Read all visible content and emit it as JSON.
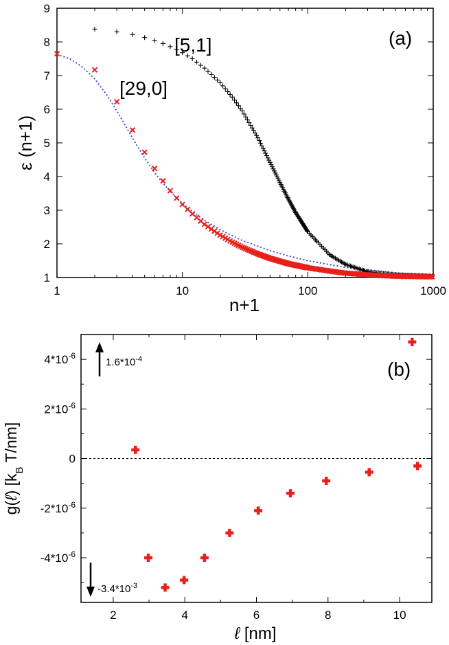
{
  "chart_data": [
    {
      "type": "scatter",
      "panel_label": "(a)",
      "xlabel": "n+1",
      "ylabel": "ε (n+1)",
      "xscale": "log",
      "xlim": [
        1,
        1000
      ],
      "ylim": [
        1,
        9
      ],
      "x_ticks": [
        1,
        10,
        100,
        1000
      ],
      "x_tick_labels": [
        "1",
        "10",
        "100",
        "1000"
      ],
      "y_ticks": [
        1,
        2,
        3,
        4,
        5,
        6,
        7,
        8,
        9
      ],
      "y_tick_labels": [
        "1",
        "2",
        "3",
        "4",
        "5",
        "6",
        "7",
        "8",
        "9"
      ],
      "series": [
        {
          "name": "[5,1]",
          "marker": "plus",
          "color": "#000000",
          "x": [
            2,
            3,
            4,
            5,
            6,
            7,
            8,
            9,
            10,
            12,
            15,
            20,
            25,
            30,
            40,
            50,
            60,
            70,
            80,
            100,
            150,
            200,
            300,
            500,
            1000
          ],
          "y": [
            8.38,
            8.3,
            8.22,
            8.13,
            8.04,
            7.95,
            7.86,
            7.77,
            7.68,
            7.5,
            7.22,
            6.79,
            6.36,
            5.95,
            5.15,
            4.42,
            3.82,
            3.33,
            2.93,
            2.36,
            1.67,
            1.39,
            1.17,
            1.08,
            1.04
          ]
        },
        {
          "name": "[29,0]",
          "marker": "cross",
          "color": "#e8201a",
          "x": [
            1,
            2,
            3,
            4,
            5,
            6,
            7,
            8,
            9,
            10,
            12,
            15,
            20,
            25,
            30,
            40,
            50,
            70,
            100,
            150,
            200,
            300,
            500,
            1000
          ],
          "y": [
            7.65,
            7.17,
            6.22,
            5.38,
            4.72,
            4.24,
            3.87,
            3.58,
            3.36,
            3.17,
            2.89,
            2.58,
            2.26,
            2.05,
            1.9,
            1.7,
            1.57,
            1.41,
            1.29,
            1.19,
            1.13,
            1.08,
            1.04,
            1.02
          ]
        },
        {
          "name": "",
          "line": "dotted",
          "color": "#3a4fd8",
          "x": [
            1,
            1.3,
            1.6,
            2,
            2.5,
            3,
            3.5,
            4,
            5,
            6,
            7,
            8,
            10,
            12,
            15,
            20,
            30,
            50,
            70,
            100,
            200,
            500,
            1000
          ],
          "y": [
            7.63,
            7.48,
            7.25,
            6.9,
            6.42,
            5.95,
            5.52,
            5.14,
            4.55,
            4.12,
            3.8,
            3.56,
            3.2,
            2.96,
            2.7,
            2.42,
            2.1,
            1.8,
            1.64,
            1.5,
            1.3,
            1.14,
            1.07
          ]
        }
      ]
    },
    {
      "type": "scatter",
      "panel_label": "(b)",
      "xlabel": "ℓ [nm]",
      "ylabel": "g(ℓ) [kB T/nm]",
      "xlim": [
        1.1,
        10.9
      ],
      "ylim": [
        -5.8e-06,
        5e-06
      ],
      "x_ticks": [
        2,
        4,
        6,
        8,
        10
      ],
      "x_tick_labels": [
        "2",
        "4",
        "6",
        "8",
        "10"
      ],
      "y_ticks": [
        -4e-06,
        -2e-06,
        0,
        2e-06,
        4e-06
      ],
      "y_tick_labels": [
        "-4*10",
        "-2*10",
        "0",
        "2*10",
        "4*10"
      ],
      "y_tick_exponent": "-6",
      "zero_line": "dotted",
      "marker": "plus-bold",
      "color": "#e8201a",
      "x": [
        2.62,
        2.98,
        3.45,
        3.98,
        4.55,
        5.25,
        6.05,
        6.95,
        7.95,
        9.15,
        10.35,
        10.5
      ],
      "y": [
        3.5e-07,
        -4e-06,
        -5.2e-06,
        -4.9e-06,
        -4e-06,
        -3e-06,
        -2.1e-06,
        -1.4e-06,
        -9e-07,
        -5.5e-07,
        4.7e-06,
        -3e-07
      ],
      "annotations": [
        {
          "text": "1.6*10",
          "exp": "-4",
          "arrow": "up"
        },
        {
          "text": "-3.4*10",
          "exp": "-3",
          "arrow": "down"
        }
      ]
    }
  ]
}
